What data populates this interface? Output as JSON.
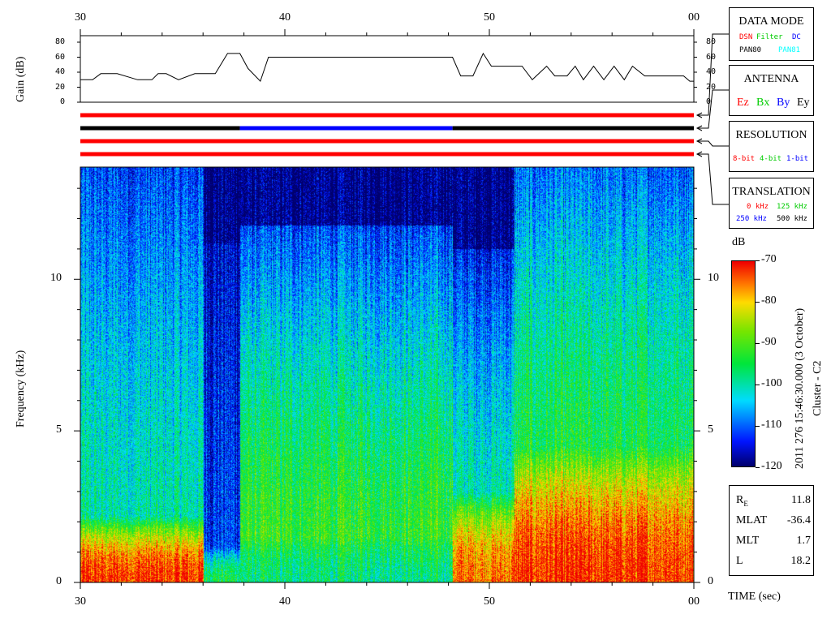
{
  "chart_data": {
    "type": "heatmap",
    "title": "",
    "time_axis": {
      "ticks": [
        "30",
        "40",
        "50",
        "00"
      ],
      "label": "TIME (sec)"
    },
    "gain_panel": {
      "ylabel": "Gain (dB)",
      "yticks": [
        "80",
        "60",
        "40",
        "20",
        "0"
      ],
      "ylim": [
        0,
        80
      ],
      "x": [
        30,
        30.6,
        31,
        31.8,
        32.8,
        33.5,
        33.8,
        34.2,
        34.8,
        35.6,
        36.2,
        36.6,
        37.2,
        37.8,
        38.2,
        38.8,
        39.2,
        48.2,
        48.6,
        49.2,
        49.7,
        50.1,
        51.6,
        52.1,
        52.8,
        53.2,
        53.8,
        54.2,
        54.6,
        55.1,
        55.6,
        56.1,
        56.6,
        57,
        57.6,
        58.3,
        59.5,
        59.8,
        60
      ],
      "gain": [
        30,
        30,
        38,
        38,
        30,
        30,
        38,
        38,
        30,
        38,
        38,
        38,
        65,
        65,
        45,
        28,
        60,
        60,
        35,
        35,
        65,
        48,
        48,
        30,
        48,
        35,
        35,
        48,
        30,
        48,
        30,
        48,
        30,
        48,
        35,
        35,
        35,
        28,
        28
      ]
    },
    "status_bars": [
      {
        "name": "DATA MODE",
        "segments": [
          {
            "from": 30,
            "to": 60,
            "color": "#ff0000"
          }
        ]
      },
      {
        "name": "ANTENNA",
        "segments": [
          {
            "from": 30,
            "to": 37.8,
            "color": "#000000"
          },
          {
            "from": 37.8,
            "to": 48.2,
            "color": "#0000ff"
          },
          {
            "from": 48.2,
            "to": 60,
            "color": "#000000"
          }
        ]
      },
      {
        "name": "RESOLUTION",
        "segments": [
          {
            "from": 30,
            "to": 60,
            "color": "#ff0000"
          }
        ]
      },
      {
        "name": "TRANSLATION",
        "segments": [
          {
            "from": 30,
            "to": 60,
            "color": "#ff0000"
          }
        ]
      }
    ],
    "spectrogram": {
      "ylabel": "Frequency (kHz)",
      "yticks": [
        "10",
        "5",
        "0"
      ],
      "ylim": [
        0,
        13.7
      ],
      "xlim": [
        30,
        60
      ],
      "colorbar": {
        "label": "dB",
        "ticks": [
          "-70",
          "-80",
          "-90",
          "-100",
          "-110",
          "-120"
        ],
        "range": [
          -120,
          -70
        ]
      },
      "regions": [
        {
          "from": 30,
          "to": 36,
          "noise_top_khz": 13.7,
          "upper_db": -112,
          "mid_db": -100,
          "low_db": -72,
          "low_top_khz": 2.2
        },
        {
          "from": 36,
          "to": 37.8,
          "noise_top_khz": 11.2,
          "upper_db": -116,
          "mid_db": -112,
          "low_db": -95,
          "low_top_khz": 1.2
        },
        {
          "from": 37.8,
          "to": 48.2,
          "noise_top_khz": 11.8,
          "upper_db": -112,
          "mid_db": -92,
          "low_db": -98,
          "low_top_khz": 1.5
        },
        {
          "from": 48.2,
          "to": 51.2,
          "noise_top_khz": 11.0,
          "upper_db": -114,
          "mid_db": -100,
          "low_db": -75,
          "low_top_khz": 3.0
        },
        {
          "from": 51.2,
          "to": 60,
          "noise_top_khz": 13.7,
          "upper_db": -110,
          "mid_db": -95,
          "low_db": -72,
          "low_top_khz": 4.5
        }
      ]
    }
  },
  "panel_boxes": {
    "data_mode": {
      "title": "DATA MODE",
      "options": [
        {
          "text": "DSN",
          "color": "#ff0000"
        },
        {
          "text": "Filter",
          "color": "#00cc00"
        },
        {
          "text": "DC",
          "color": "#0000ff"
        },
        {
          "text": "PAN80",
          "color": "#000000"
        },
        {
          "text": "PAN81",
          "color": "#00ffff"
        }
      ]
    },
    "antenna": {
      "title": "ANTENNA",
      "options": [
        {
          "text": "Ez",
          "color": "#ff0000"
        },
        {
          "text": "Bx",
          "color": "#00cc00"
        },
        {
          "text": "By",
          "color": "#0000ff"
        },
        {
          "text": "Ey",
          "color": "#000000"
        }
      ]
    },
    "resolution": {
      "title": "RESOLUTION",
      "options": [
        {
          "text": "8-bit",
          "color": "#ff0000"
        },
        {
          "text": "4-bit",
          "color": "#00cc00"
        },
        {
          "text": "1-bit",
          "color": "#0000ff"
        }
      ]
    },
    "translation": {
      "title": "TRANSLATION",
      "options": [
        {
          "text": "0 kHz",
          "color": "#ff0000"
        },
        {
          "text": "125 kHz",
          "color": "#00cc00"
        },
        {
          "text": "250 kHz",
          "color": "#0000ff"
        },
        {
          "text": "500 kHz",
          "color": "#000000"
        }
      ]
    }
  },
  "side_caption": {
    "line1": "2011 276 15:46:30.000 (3 October)",
    "line2": "Cluster - C2"
  },
  "orbit_info": [
    {
      "key": "RE",
      "key_main": "R",
      "key_sub": "E",
      "value": "11.8"
    },
    {
      "key": "MLAT",
      "value": "-36.4"
    },
    {
      "key": "MLT",
      "value": "1.7"
    },
    {
      "key": "L",
      "value": "18.2"
    }
  ]
}
